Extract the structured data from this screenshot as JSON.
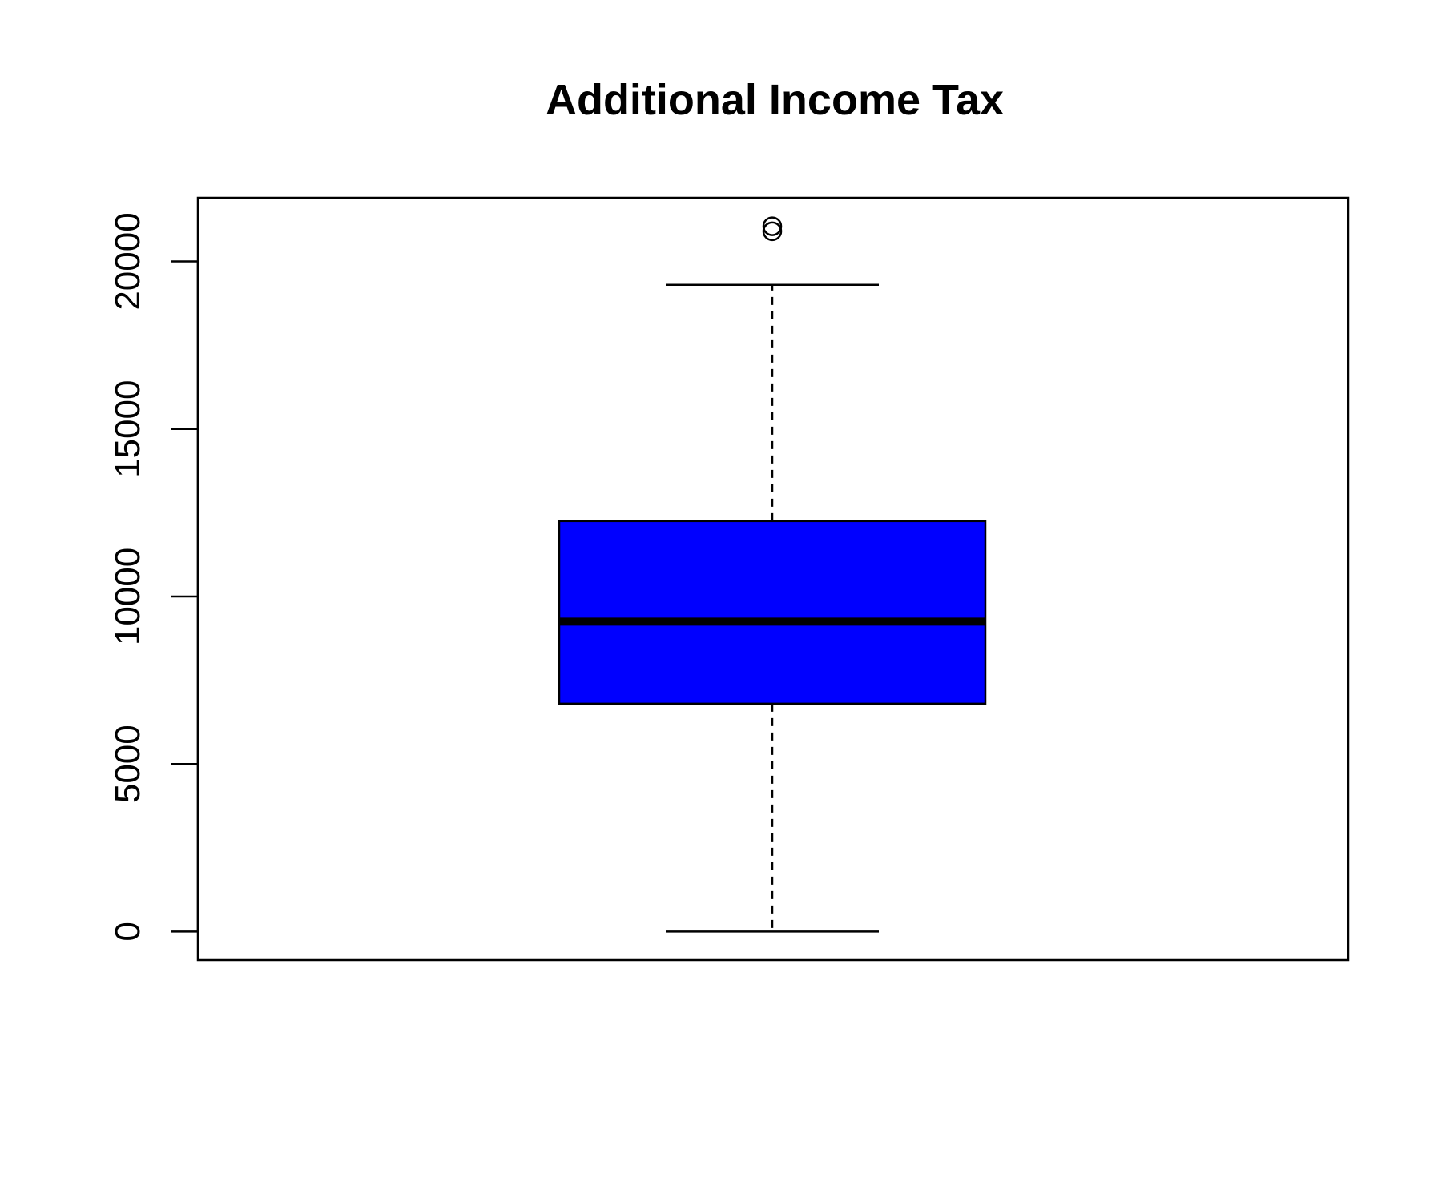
{
  "chart_data": {
    "type": "box",
    "title": "Additional Income Tax",
    "xlabel": "",
    "ylabel": "",
    "ylim": [
      -850,
      21900
    ],
    "y_ticks": [
      0,
      5000,
      10000,
      15000,
      20000
    ],
    "y_tick_labels": [
      "0",
      "5000",
      "10000",
      "15000",
      "20000"
    ],
    "box": {
      "whisker_low": 0,
      "q1": 6800,
      "median": 9250,
      "q3": 12250,
      "whisker_high": 19300
    },
    "outliers": [
      20900,
      21050
    ],
    "fill_color": "#0000ff",
    "grid": false
  }
}
